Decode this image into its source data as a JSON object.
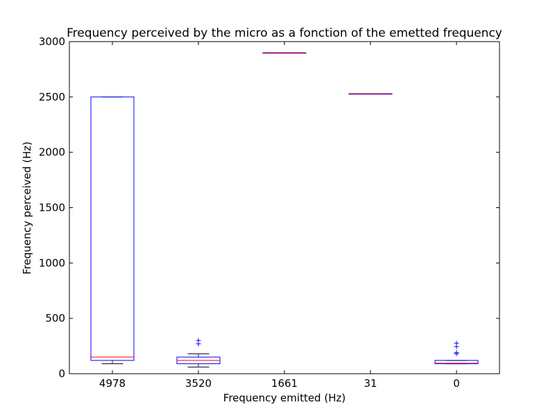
{
  "chart_data": {
    "type": "boxplot",
    "title": "Frequency perceived by the micro as a fonction of the emetted frequency",
    "xlabel": "Frequency emitted (Hz)",
    "ylabel": "Frequency perceived (Hz)",
    "ylim": [
      0,
      3000
    ],
    "yticks": [
      0,
      500,
      1000,
      1500,
      2000,
      2500,
      3000
    ],
    "categories": [
      "4978",
      "3520",
      "1661",
      "31",
      "0"
    ],
    "boxes": [
      {
        "category": "4978",
        "whisker_low": 90,
        "q1": 120,
        "median": 150,
        "q3": 2500,
        "whisker_high": 2500,
        "fliers": []
      },
      {
        "category": "3520",
        "whisker_low": 60,
        "q1": 90,
        "median": 120,
        "q3": 150,
        "whisker_high": 180,
        "fliers": [
          270,
          300
        ]
      },
      {
        "category": "1661",
        "whisker_low": 2900,
        "q1": 2900,
        "median": 2900,
        "q3": 2900,
        "whisker_high": 2900,
        "fliers": []
      },
      {
        "category": "31",
        "whisker_low": 2530,
        "q1": 2530,
        "median": 2530,
        "q3": 2530,
        "whisker_high": 2530,
        "fliers": []
      },
      {
        "category": "0",
        "whisker_low": 90,
        "q1": 90,
        "median": 95,
        "q3": 120,
        "whisker_high": 120,
        "fliers": [
          180,
          190,
          245,
          275
        ]
      }
    ],
    "grid": false,
    "legend": "none",
    "colors": {
      "box": "#0000ff",
      "median": "#ff0000",
      "whisker_cap": "#000000",
      "flier": "#0000ff",
      "axes": "#000000"
    }
  }
}
